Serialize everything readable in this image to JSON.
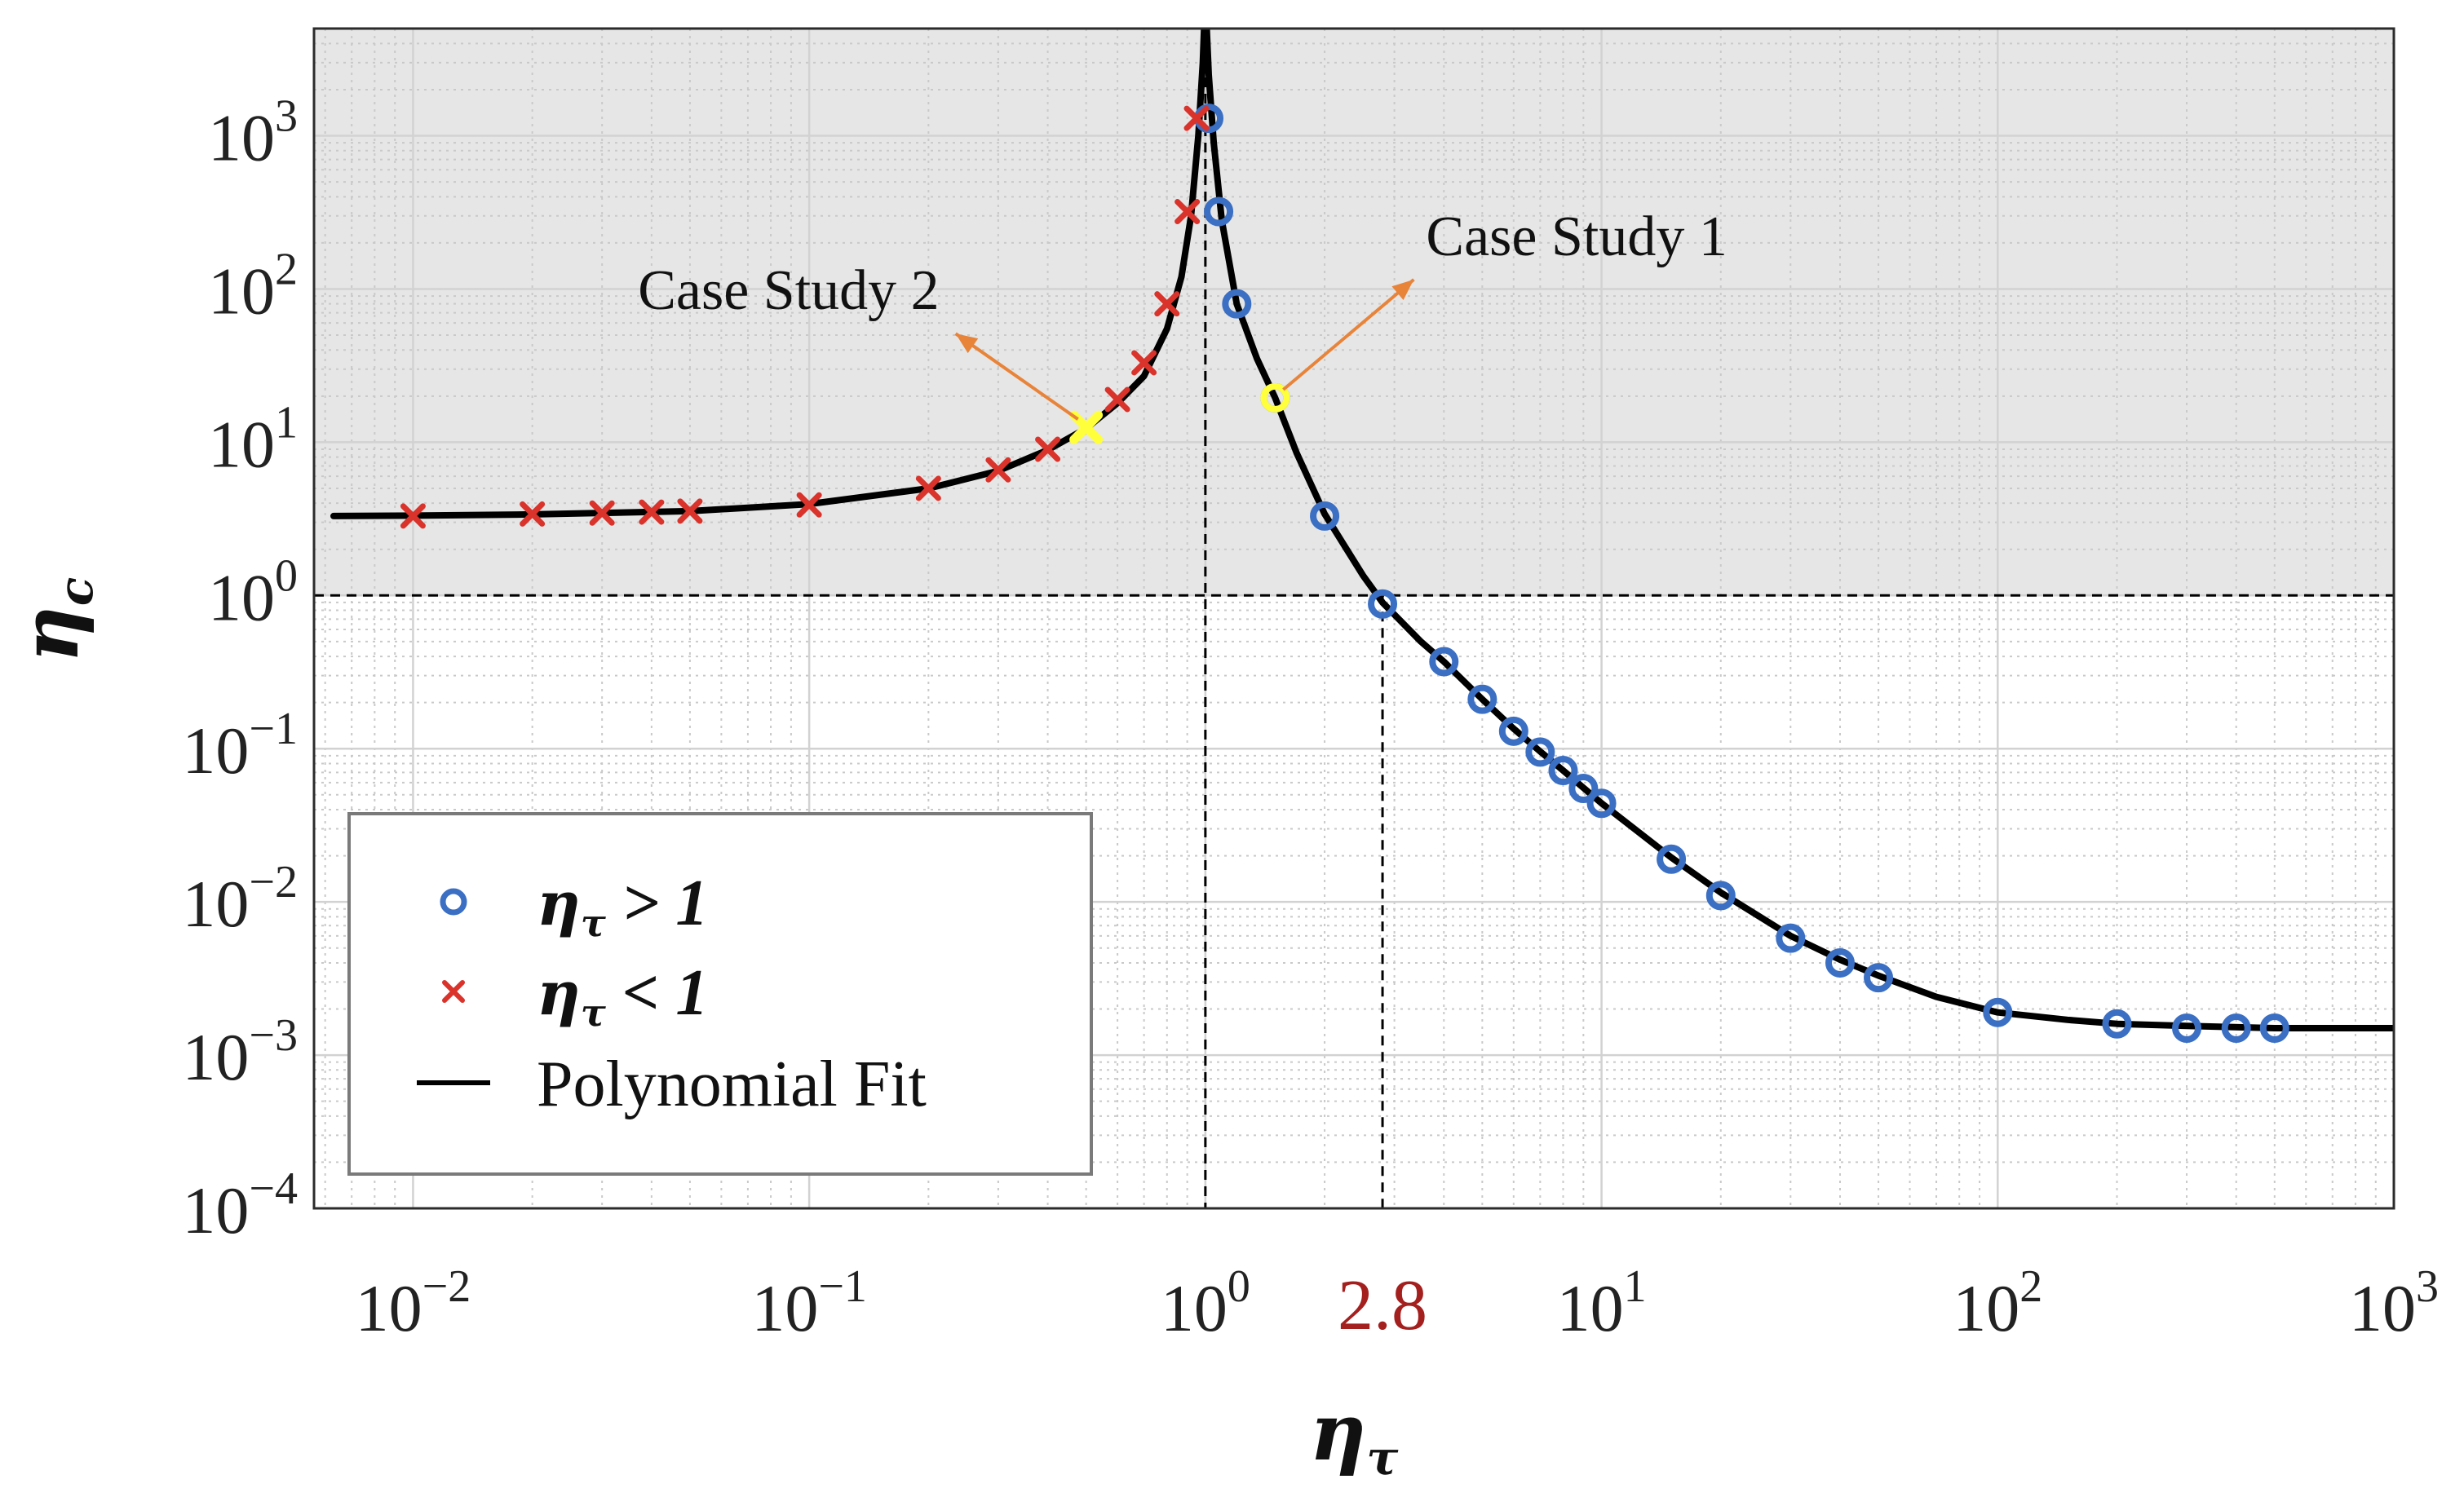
{
  "chart_data": {
    "type": "scatter",
    "xscale": "log",
    "yscale": "log",
    "xlim_exp": [
      -2.25,
      3
    ],
    "ylim_exp": [
      -4,
      3.7
    ],
    "xlabel": {
      "main": "η",
      "sub": "τ"
    },
    "ylabel": {
      "main": "η",
      "sub": "c"
    },
    "x_ticks": [
      {
        "base": "10",
        "exp": "−2",
        "value": 0.01
      },
      {
        "base": "10",
        "exp": "−1",
        "value": 0.1
      },
      {
        "base": "10",
        "exp": "0",
        "value": 1
      },
      {
        "base": "10",
        "exp": "1",
        "value": 10
      },
      {
        "base": "10",
        "exp": "2",
        "value": 100
      },
      {
        "base": "10",
        "exp": "3",
        "value": 1000
      }
    ],
    "y_ticks": [
      {
        "base": "10",
        "exp": "−4",
        "value": 0.0001
      },
      {
        "base": "10",
        "exp": "−3",
        "value": 0.001
      },
      {
        "base": "10",
        "exp": "−2",
        "value": 0.01
      },
      {
        "base": "10",
        "exp": "−1",
        "value": 0.1
      },
      {
        "base": "10",
        "exp": "0",
        "value": 1
      },
      {
        "base": "10",
        "exp": "1",
        "value": 10
      },
      {
        "base": "10",
        "exp": "2",
        "value": 100
      },
      {
        "base": "10",
        "exp": "3",
        "value": 1000
      }
    ],
    "marked_x": {
      "label": "2.8",
      "value": 2.8,
      "color": "#a3201f"
    },
    "shaded_region": {
      "y_min": 1,
      "color": "#e6e6e6"
    },
    "reference_lines": [
      {
        "axis": "x",
        "value": 1,
        "style": "dashed"
      },
      {
        "axis": "x",
        "value": 2.8,
        "style": "dashed",
        "y_to": 1
      },
      {
        "axis": "y",
        "value": 1,
        "style": "dashed"
      }
    ],
    "series": [
      {
        "name": "η_τ > 1",
        "marker": "circle",
        "color": "#3a6fc4",
        "points": [
          [
            1.02,
            1300
          ],
          [
            1.08,
            320
          ],
          [
            1.2,
            80
          ],
          [
            1.5,
            19.5
          ],
          [
            2,
            3.3
          ],
          [
            2.8,
            0.88
          ],
          [
            4,
            0.37
          ],
          [
            5,
            0.21
          ],
          [
            6,
            0.13
          ],
          [
            7,
            0.095
          ],
          [
            8,
            0.072
          ],
          [
            9,
            0.055
          ],
          [
            10,
            0.044
          ],
          [
            15,
            0.019
          ],
          [
            20,
            0.011
          ],
          [
            30,
            0.0058
          ],
          [
            40,
            0.004
          ],
          [
            50,
            0.0032
          ],
          [
            100,
            0.0019
          ],
          [
            200,
            0.0016
          ],
          [
            300,
            0.0015
          ],
          [
            400,
            0.0015
          ],
          [
            500,
            0.0015
          ]
        ]
      },
      {
        "name": "η_τ < 1",
        "marker": "x",
        "color": "#d9332b",
        "points": [
          [
            0.01,
            3.3
          ],
          [
            0.02,
            3.4
          ],
          [
            0.03,
            3.45
          ],
          [
            0.04,
            3.5
          ],
          [
            0.05,
            3.55
          ],
          [
            0.1,
            3.9
          ],
          [
            0.2,
            5
          ],
          [
            0.3,
            6.6
          ],
          [
            0.4,
            9
          ],
          [
            0.5,
            12.5
          ],
          [
            0.6,
            19
          ],
          [
            0.7,
            33
          ],
          [
            0.8,
            80
          ],
          [
            0.9,
            320
          ],
          [
            0.95,
            1300
          ]
        ]
      },
      {
        "name": "Polynomial Fit",
        "type": "line",
        "color": "#000000",
        "points": [
          [
            0.0063,
            3.3
          ],
          [
            0.01,
            3.32
          ],
          [
            0.02,
            3.38
          ],
          [
            0.05,
            3.55
          ],
          [
            0.1,
            3.95
          ],
          [
            0.2,
            5.0
          ],
          [
            0.3,
            6.5
          ],
          [
            0.4,
            8.9
          ],
          [
            0.5,
            12.3
          ],
          [
            0.6,
            18.0
          ],
          [
            0.7,
            27.0
          ],
          [
            0.8,
            55.0
          ],
          [
            0.87,
            120
          ],
          [
            0.92,
            300
          ],
          [
            0.96,
            1000
          ],
          [
            0.985,
            3000
          ],
          [
            0.995,
            6000
          ],
          [
            1.005,
            6000
          ],
          [
            1.02,
            2500
          ],
          [
            1.05,
            900
          ],
          [
            1.1,
            280
          ],
          [
            1.2,
            80
          ],
          [
            1.35,
            35
          ],
          [
            1.5,
            19.5
          ],
          [
            1.7,
            8.5
          ],
          [
            2.0,
            3.4
          ],
          [
            2.5,
            1.35
          ],
          [
            2.8,
            0.9
          ],
          [
            3.5,
            0.5
          ],
          [
            4,
            0.37
          ],
          [
            5,
            0.21
          ],
          [
            6,
            0.135
          ],
          [
            7,
            0.096
          ],
          [
            8,
            0.072
          ],
          [
            10,
            0.044
          ],
          [
            15,
            0.0195
          ],
          [
            20,
            0.0115
          ],
          [
            30,
            0.006
          ],
          [
            40,
            0.0042
          ],
          [
            50,
            0.0033
          ],
          [
            70,
            0.0024
          ],
          [
            100,
            0.0019
          ],
          [
            150,
            0.0017
          ],
          [
            200,
            0.0016
          ],
          [
            300,
            0.00155
          ],
          [
            500,
            0.0015
          ],
          [
            1000,
            0.0015
          ]
        ]
      }
    ],
    "highlights": [
      {
        "name": "case-study-1",
        "x": 1.5,
        "y": 19.5,
        "marker": "circle",
        "color": "#ffff3c"
      },
      {
        "name": "case-study-2",
        "x": 0.5,
        "y": 12.5,
        "marker": "x",
        "color": "#ffff3c"
      }
    ],
    "annotations": [
      {
        "text": "Case Study 1",
        "x": 1.5,
        "y": 19.5,
        "arrow_color": "#e8843a",
        "direction": "up-right"
      },
      {
        "text": "Case Study 2",
        "x": 0.5,
        "y": 12.5,
        "arrow_color": "#e8843a",
        "direction": "up-left"
      }
    ],
    "legend": {
      "position": "bottom-left",
      "entries": [
        {
          "main": "η",
          "sub": "τ",
          "rest": " > 1",
          "marker": "circle",
          "color": "#3a6fc4"
        },
        {
          "main": "η",
          "sub": "τ",
          "rest": " < 1",
          "marker": "x",
          "color": "#d9332b"
        },
        {
          "text": "Polynomial Fit",
          "marker": "line",
          "color": "#000000"
        }
      ]
    }
  }
}
